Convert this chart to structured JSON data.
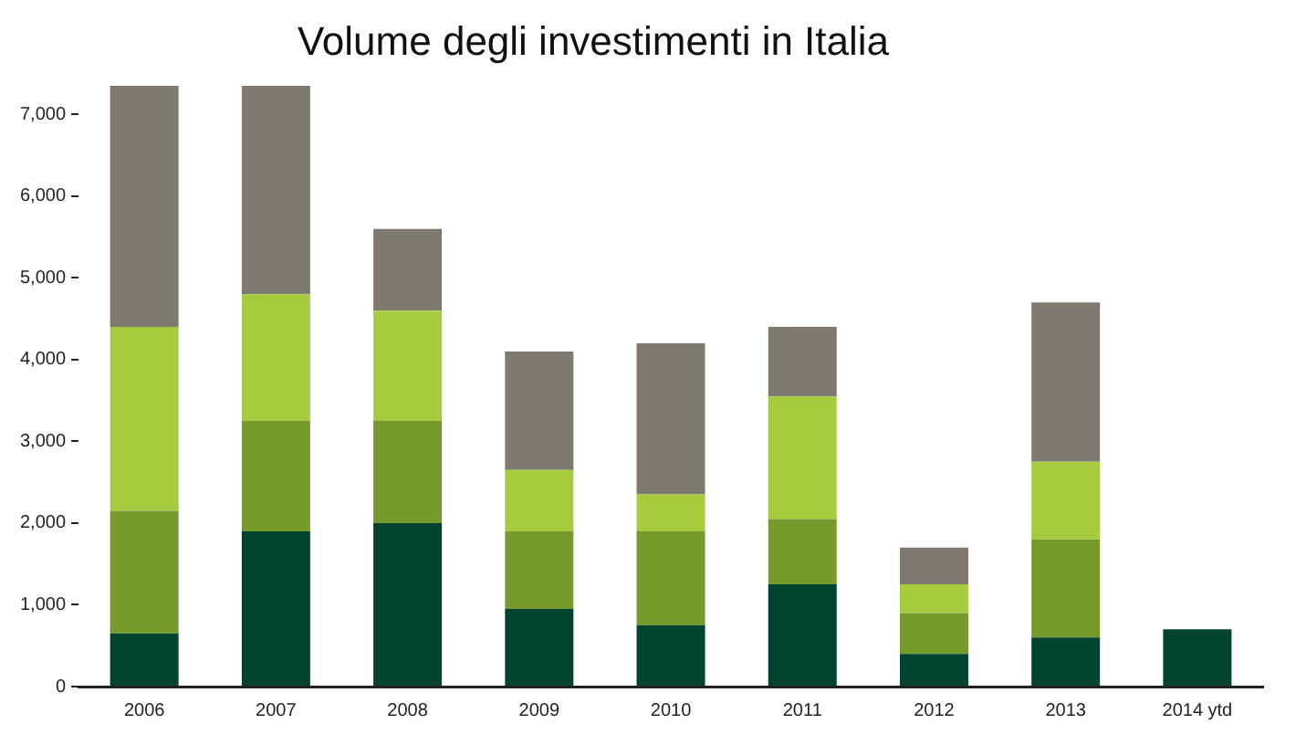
{
  "chart_data": {
    "type": "bar",
    "title": "Volume degli investimenti in Italia",
    "stacked": true,
    "categories": [
      "2006",
      "2007",
      "2008",
      "2009",
      "2010",
      "2011",
      "2012",
      "2013",
      "2014 ytd"
    ],
    "series": [
      {
        "color": "#00432f",
        "values": [
          650,
          1900,
          2000,
          950,
          750,
          1250,
          400,
          600,
          700
        ]
      },
      {
        "color": "#779a2d",
        "values": [
          1500,
          1350,
          1250,
          950,
          1150,
          800,
          500,
          1200,
          null
        ]
      },
      {
        "color": "#a5cc3f",
        "values": [
          2250,
          1550,
          1350,
          750,
          450,
          1500,
          350,
          950,
          null
        ]
      },
      {
        "color": "#7f7a70",
        "values": [
          2950,
          2550,
          1000,
          1450,
          1850,
          850,
          450,
          1950,
          null
        ]
      }
    ],
    "ylim": [
      0,
      7350
    ],
    "yticks": [
      0,
      {
        "value": 1000,
        "label": "1,000"
      },
      {
        "value": 2000,
        "label": "2,000"
      },
      {
        "value": 3000,
        "label": "3,000"
      },
      {
        "value": 4000,
        "label": "4,000"
      },
      {
        "value": 5000,
        "label": "5,000"
      },
      {
        "value": 6000,
        "label": "6,000"
      },
      {
        "value": 7000,
        "label": "7,000"
      }
    ],
    "grid": false,
    "legend": false
  }
}
